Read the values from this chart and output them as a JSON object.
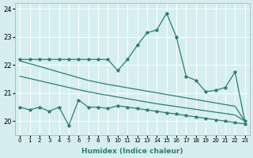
{
  "xlabel": "Humidex (Indice chaleur)",
  "main_x": [
    0,
    1,
    2,
    3,
    4,
    5,
    6,
    7,
    8,
    9,
    10,
    11,
    12,
    13,
    14,
    15,
    16,
    17,
    18,
    19,
    20,
    21,
    22,
    23
  ],
  "main_y": [
    22.2,
    22.2,
    22.2,
    22.2,
    22.2,
    22.2,
    22.2,
    22.2,
    22.2,
    22.2,
    21.8,
    22.2,
    22.7,
    23.15,
    23.25,
    23.85,
    23.0,
    21.6,
    21.45,
    21.05,
    21.1,
    21.2,
    21.75,
    20.0
  ],
  "upper_x": [
    0,
    1,
    2,
    3,
    4,
    5,
    6,
    7,
    8,
    9,
    10,
    11,
    12,
    13,
    14,
    15,
    16,
    17,
    18,
    19,
    20,
    21,
    22,
    23
  ],
  "upper_y": [
    22.15,
    22.05,
    21.95,
    21.85,
    21.75,
    21.65,
    21.55,
    21.45,
    21.38,
    21.31,
    21.25,
    21.19,
    21.13,
    21.07,
    21.01,
    20.95,
    20.89,
    20.83,
    20.77,
    20.71,
    20.65,
    20.59,
    20.53,
    20.0
  ],
  "mid_x": [
    0,
    1,
    2,
    3,
    4,
    5,
    6,
    7,
    8,
    9,
    10,
    11,
    12,
    13,
    14,
    15,
    16,
    17,
    18,
    19,
    20,
    21,
    22,
    23
  ],
  "mid_y": [
    21.6,
    21.52,
    21.44,
    21.36,
    21.28,
    21.2,
    21.12,
    21.05,
    20.98,
    20.92,
    20.86,
    20.8,
    20.74,
    20.68,
    20.62,
    20.57,
    20.52,
    20.47,
    20.42,
    20.37,
    20.32,
    20.27,
    20.22,
    20.0
  ],
  "low_x": [
    0,
    1,
    2,
    3,
    4,
    5,
    6,
    7,
    8,
    9,
    10,
    11,
    12,
    13,
    14,
    15,
    16,
    17,
    18,
    19,
    20,
    21,
    22,
    23
  ],
  "low_y": [
    20.5,
    20.4,
    20.5,
    20.35,
    20.5,
    19.85,
    20.75,
    20.5,
    20.5,
    20.45,
    20.55,
    20.5,
    20.45,
    20.4,
    20.35,
    20.3,
    20.25,
    20.2,
    20.15,
    20.1,
    20.05,
    20.0,
    19.95,
    19.9
  ],
  "ylim": [
    19.5,
    24.2
  ],
  "yticks": [
    20,
    21,
    22,
    23,
    24
  ],
  "line_color": "#2E7D6E",
  "bg_color": "#D6EEF0",
  "grid_color": "#FFFFFF",
  "figsize": [
    3.2,
    2.0
  ],
  "dpi": 100
}
